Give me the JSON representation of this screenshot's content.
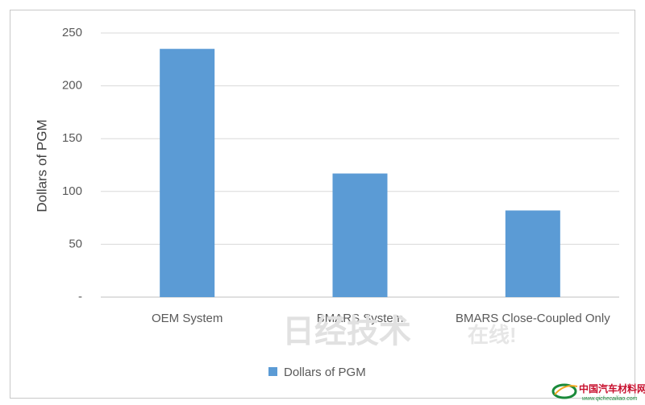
{
  "chart_data": {
    "type": "bar",
    "categories": [
      "OEM System",
      "BMARS System",
      "BMARS Close-Coupled Only"
    ],
    "series": [
      {
        "name": "Dollars of PGM",
        "values": [
          235,
          117,
          82
        ],
        "color": "#5b9bd5"
      }
    ],
    "xlabel": "",
    "ylabel": "Dollars of PGM",
    "ylim": [
      0,
      250
    ],
    "yticks": [
      {
        "value": 0,
        "label": "-"
      },
      {
        "value": 50,
        "label": "50"
      },
      {
        "value": 100,
        "label": "100"
      },
      {
        "value": 150,
        "label": "150"
      },
      {
        "value": 200,
        "label": "200"
      },
      {
        "value": 250,
        "label": "250"
      }
    ],
    "grid": true,
    "legend_position": "bottom"
  },
  "watermark": {
    "text": "日经技术",
    "text_small": "在线!"
  },
  "logo": {
    "text": "中国汽车材料网",
    "url": "www.qichecailiao.com"
  }
}
